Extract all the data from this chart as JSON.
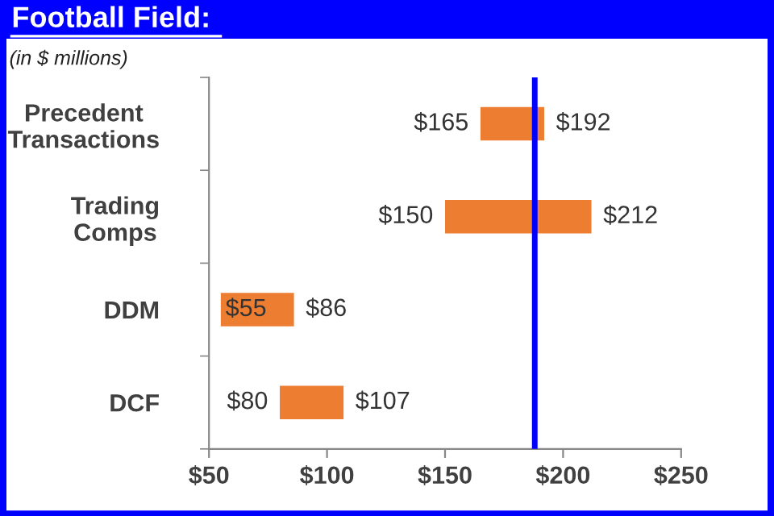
{
  "chart_data": {
    "type": "bar",
    "orientation": "horizontal",
    "title": "Football Field:",
    "subtitle": "(in $ millions)",
    "categories": [
      "Precedent\nTransactions",
      "Trading\nComps",
      "DDM",
      "DCF"
    ],
    "base": [
      165,
      150,
      55,
      80
    ],
    "values": [
      27,
      62,
      31,
      27
    ],
    "color": "#ed7d31",
    "xlim": [
      50,
      250
    ],
    "xticks": [
      {
        "value": 50,
        "label": "$50"
      },
      {
        "value": 100,
        "label": "$100"
      },
      {
        "value": 150,
        "label": "$150"
      },
      {
        "value": 200,
        "label": "$200"
      },
      {
        "value": 250,
        "label": "$250"
      }
    ],
    "ref_lines": [
      {
        "axis": "x",
        "value": 188,
        "label": null,
        "color": "#0000ff"
      }
    ],
    "annotations": [
      {
        "text": "$165",
        "x": 165,
        "y": "Precedent\nTransactions"
      },
      {
        "text": "$192",
        "x": 192,
        "y": "Precedent\nTransactions"
      },
      {
        "text": "$150",
        "x": 150,
        "y": "Trading\nComps"
      },
      {
        "text": "$212",
        "x": 212,
        "y": "Trading\nComps"
      },
      {
        "text": "$55",
        "x": 55,
        "y": "DDM"
      },
      {
        "text": "$86",
        "x": 86,
        "y": "DDM"
      },
      {
        "text": "$80",
        "x": 80,
        "y": "DCF"
      },
      {
        "text": "$107",
        "x": 107,
        "y": "DCF"
      }
    ],
    "grid": false,
    "legend": false
  }
}
